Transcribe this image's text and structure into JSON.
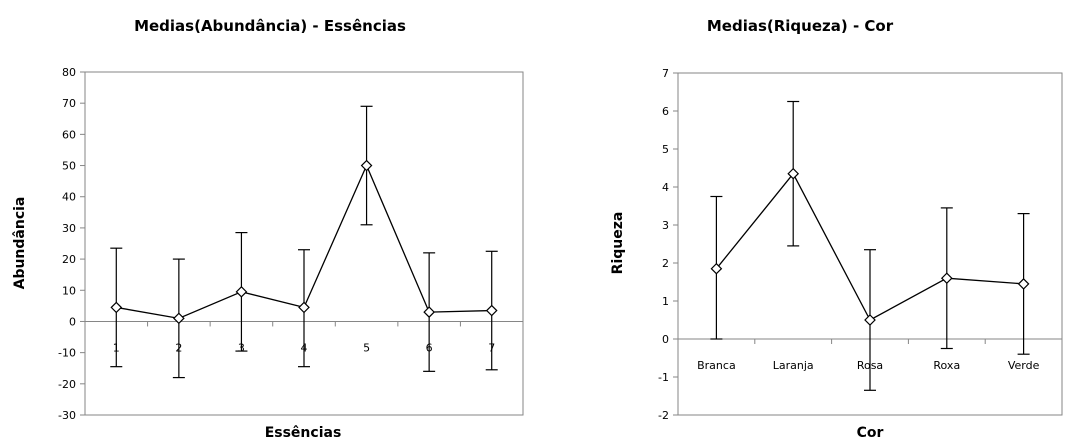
{
  "chart_data": [
    {
      "type": "line",
      "title": "Medias(Abundância) - Essências",
      "xlabel": "Essências",
      "ylabel": "Abundância",
      "categories": [
        "1",
        "2",
        "3",
        "4",
        "5",
        "6",
        "7"
      ],
      "values": [
        4.5,
        1,
        9.5,
        4.5,
        50,
        3,
        3.5
      ],
      "error_low": [
        -14.5,
        -18,
        -9.5,
        -14.5,
        31,
        -16,
        -15.5
      ],
      "error_high": [
        23.5,
        20,
        28.5,
        23,
        69,
        22,
        22.5
      ],
      "ylim": [
        -30,
        80
      ],
      "yticks": [
        "-30",
        "-20",
        "-10",
        "0",
        "10",
        "20",
        "30",
        "40",
        "50",
        "60",
        "70",
        "80"
      ],
      "marker": "diamond",
      "grid": false,
      "legend": "none"
    },
    {
      "type": "line",
      "title": "Medias(Riqueza) - Cor",
      "xlabel": "Cor",
      "ylabel": "Riqueza",
      "categories": [
        "Branca",
        "Laranja",
        "Rosa",
        "Roxa",
        "Verde"
      ],
      "values": [
        1.85,
        4.35,
        0.5,
        1.6,
        1.45
      ],
      "error_low": [
        0,
        2.45,
        -1.35,
        -0.25,
        -0.4
      ],
      "error_high": [
        3.75,
        6.25,
        2.35,
        3.45,
        3.3
      ],
      "ylim": [
        -2,
        7
      ],
      "yticks": [
        "-2",
        "-1",
        "0",
        "1",
        "2",
        "3",
        "4",
        "5",
        "6",
        "7"
      ],
      "marker": "diamond",
      "grid": false,
      "legend": "none"
    }
  ]
}
